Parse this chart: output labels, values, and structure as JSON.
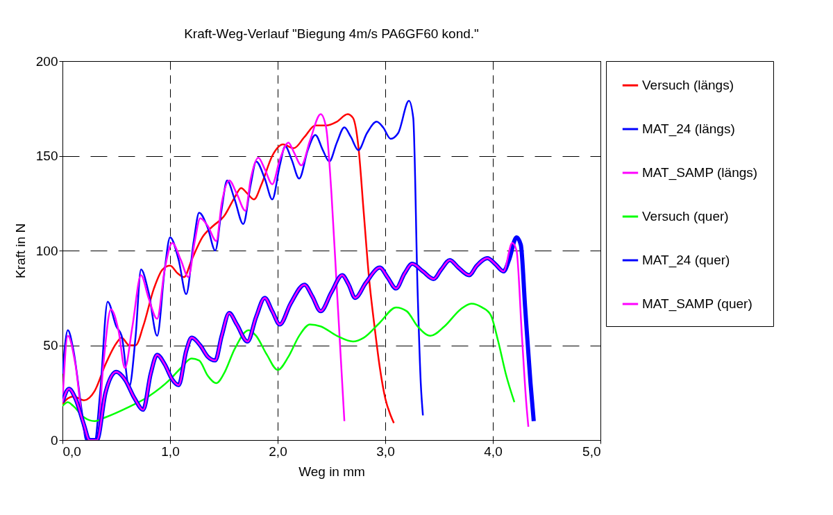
{
  "chart_data": {
    "type": "line",
    "title": "Kraft-Weg-Verlauf \"Biegung 4m/s PA6GF60 kond.\"",
    "xlabel": "Weg in mm",
    "ylabel": "Kraft in N",
    "xlim": [
      0,
      5
    ],
    "xticks": [
      {
        "value": 0,
        "label": "0,0"
      },
      {
        "value": 1,
        "label": "1,0"
      },
      {
        "value": 2,
        "label": "2,0"
      },
      {
        "value": 3,
        "label": "3,0"
      },
      {
        "value": 4,
        "label": "4,0"
      },
      {
        "value": 5,
        "label": "5,0"
      }
    ],
    "ylim": [
      0,
      200
    ],
    "yticks": [
      0,
      50,
      100,
      150,
      200
    ],
    "grid": true,
    "legend": "right",
    "marker": "none",
    "line_style": "solid",
    "series": [
      {
        "name": "Versuch (längs)",
        "color": "#ff0000",
        "x": [
          0,
          0.05,
          0.1,
          0.2,
          0.3,
          0.4,
          0.5,
          0.55,
          0.62,
          0.68,
          0.75,
          0.85,
          0.93,
          1.0,
          1.07,
          1.13,
          1.2,
          1.3,
          1.4,
          1.5,
          1.6,
          1.66,
          1.72,
          1.78,
          1.85,
          1.95,
          2.05,
          2.15,
          2.25,
          2.35,
          2.45,
          2.55,
          2.65,
          2.7,
          2.75,
          2.8,
          2.85,
          2.9,
          2.95,
          3.0,
          3.05,
          3.08
        ],
        "values": [
          19,
          22,
          23,
          21,
          26,
          40,
          51,
          54,
          50,
          50,
          60,
          80,
          90,
          92,
          88,
          86,
          95,
          107,
          113,
          118,
          128,
          133,
          130,
          127,
          135,
          150,
          156,
          154,
          160,
          166,
          166,
          168,
          172,
          170,
          155,
          120,
          85,
          60,
          38,
          22,
          13,
          9
        ]
      },
      {
        "name": "MAT_24 (längs)",
        "color": "#0000ff",
        "x": [
          0,
          0.05,
          0.1,
          0.18,
          0.22,
          0.3,
          0.35,
          0.42,
          0.5,
          0.55,
          0.62,
          0.68,
          0.73,
          0.8,
          0.88,
          0.95,
          1.0,
          1.08,
          1.15,
          1.22,
          1.27,
          1.35,
          1.42,
          1.48,
          1.53,
          1.6,
          1.68,
          1.75,
          1.8,
          1.88,
          1.95,
          2.02,
          2.07,
          2.13,
          2.2,
          2.28,
          2.35,
          2.42,
          2.48,
          2.55,
          2.62,
          2.68,
          2.75,
          2.83,
          2.92,
          2.98,
          3.05,
          3.12,
          3.22,
          3.26,
          3.3,
          3.33,
          3.35
        ],
        "values": [
          35,
          58,
          48,
          15,
          0,
          0,
          25,
          73,
          60,
          55,
          28,
          55,
          90,
          78,
          55,
          90,
          107,
          95,
          77,
          105,
          120,
          112,
          100,
          122,
          137,
          127,
          114,
          135,
          147,
          138,
          127,
          145,
          155,
          148,
          138,
          153,
          161,
          153,
          147,
          157,
          165,
          160,
          153,
          162,
          168,
          165,
          159,
          162,
          179,
          170,
          80,
          30,
          13
        ]
      },
      {
        "name": "MAT_SAMP (längs)",
        "color": "#ff00ff",
        "x": [
          0,
          0.05,
          0.12,
          0.2,
          0.25,
          0.32,
          0.38,
          0.45,
          0.52,
          0.58,
          0.65,
          0.73,
          0.8,
          0.88,
          0.95,
          1.02,
          1.1,
          1.17,
          1.23,
          1.28,
          1.35,
          1.43,
          1.48,
          1.55,
          1.62,
          1.7,
          1.75,
          1.82,
          1.88,
          1.95,
          2.02,
          2.1,
          2.15,
          2.22,
          2.3,
          2.4,
          2.45,
          2.5,
          2.55,
          2.6,
          2.62
        ],
        "values": [
          20,
          55,
          40,
          5,
          0,
          0,
          40,
          69,
          58,
          38,
          60,
          87,
          75,
          64,
          90,
          104,
          95,
          86,
          105,
          117,
          113,
          105,
          125,
          137,
          130,
          121,
          138,
          149,
          143,
          135,
          148,
          157,
          152,
          145,
          158,
          172,
          165,
          130,
          80,
          30,
          10
        ]
      },
      {
        "name": "Versuch (quer)",
        "color": "#00ff00",
        "x": [
          0,
          0.05,
          0.1,
          0.2,
          0.3,
          0.4,
          0.6,
          0.8,
          1.0,
          1.1,
          1.2,
          1.27,
          1.35,
          1.43,
          1.5,
          1.6,
          1.73,
          1.8,
          1.9,
          2.0,
          2.1,
          2.2,
          2.3,
          2.4,
          2.55,
          2.7,
          2.8,
          2.95,
          3.1,
          3.2,
          3.3,
          3.42,
          3.55,
          3.7,
          3.8,
          3.9,
          3.98,
          4.05,
          4.12,
          4.2
        ],
        "values": [
          18,
          20,
          18,
          12,
          10,
          12,
          17,
          23,
          32,
          38,
          43,
          42,
          34,
          30,
          35,
          48,
          58,
          55,
          45,
          37,
          44,
          55,
          61,
          60,
          55,
          52,
          54,
          62,
          70,
          68,
          60,
          55,
          60,
          69,
          72,
          70,
          66,
          52,
          35,
          20
        ]
      },
      {
        "name": "MAT_24 (quer)",
        "color": "#0000ff",
        "x": [
          0,
          0.06,
          0.12,
          0.2,
          0.25,
          0.32,
          0.4,
          0.5,
          0.58,
          0.67,
          0.75,
          0.82,
          0.88,
          0.95,
          1.02,
          1.08,
          1.15,
          1.2,
          1.28,
          1.35,
          1.42,
          1.48,
          1.55,
          1.62,
          1.72,
          1.8,
          1.88,
          1.95,
          2.02,
          2.12,
          2.25,
          2.32,
          2.4,
          2.5,
          2.6,
          2.66,
          2.72,
          2.82,
          2.95,
          3.02,
          3.1,
          3.18,
          3.25,
          3.35,
          3.45,
          3.52,
          3.6,
          3.68,
          3.78,
          3.85,
          3.95,
          4.02,
          4.1,
          4.15,
          4.22,
          4.26,
          4.3,
          4.35,
          4.38
        ],
        "values": [
          20,
          27,
          22,
          8,
          0,
          0,
          25,
          36,
          32,
          22,
          16,
          35,
          45,
          40,
          32,
          29,
          47,
          54,
          50,
          44,
          42,
          55,
          67,
          61,
          52,
          65,
          75,
          68,
          61,
          72,
          82,
          76,
          68,
          78,
          87,
          82,
          75,
          83,
          91,
          86,
          80,
          88,
          93,
          89,
          85,
          90,
          95,
          91,
          87,
          92,
          96,
          93,
          89,
          95,
          107,
          103,
          70,
          30,
          10
        ]
      },
      {
        "name": "MAT_SAMP (quer)",
        "color": "#ff00ff",
        "x": [
          0,
          0.06,
          0.12,
          0.2,
          0.25,
          0.32,
          0.4,
          0.5,
          0.58,
          0.67,
          0.75,
          0.82,
          0.88,
          0.95,
          1.02,
          1.08,
          1.15,
          1.2,
          1.28,
          1.35,
          1.42,
          1.48,
          1.55,
          1.62,
          1.72,
          1.8,
          1.88,
          1.95,
          2.02,
          2.12,
          2.25,
          2.32,
          2.4,
          2.5,
          2.6,
          2.66,
          2.72,
          2.82,
          2.95,
          3.02,
          3.1,
          3.18,
          3.25,
          3.35,
          3.45,
          3.52,
          3.6,
          3.68,
          3.78,
          3.85,
          3.95,
          4.02,
          4.1,
          4.18,
          4.22,
          4.27,
          4.31,
          4.33
        ],
        "values": [
          20,
          27,
          22,
          8,
          0,
          0,
          25,
          36,
          32,
          22,
          16,
          35,
          45,
          40,
          32,
          29,
          47,
          54,
          50,
          44,
          42,
          55,
          67,
          61,
          52,
          65,
          75,
          68,
          61,
          72,
          82,
          76,
          68,
          78,
          87,
          82,
          75,
          83,
          91,
          86,
          80,
          88,
          93,
          89,
          85,
          90,
          95,
          91,
          87,
          92,
          96,
          93,
          89,
          104,
          100,
          55,
          20,
          7
        ]
      }
    ]
  }
}
